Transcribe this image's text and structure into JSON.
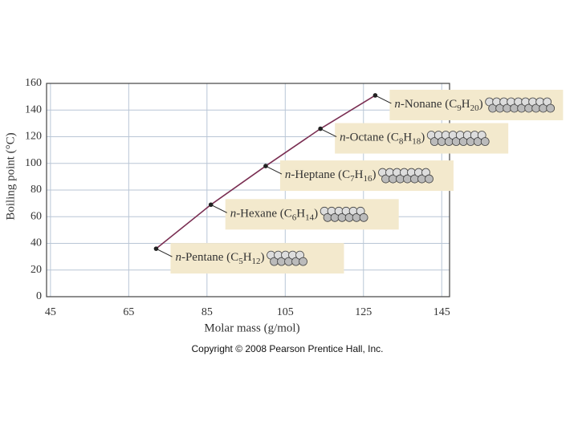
{
  "chart_data": {
    "type": "line",
    "x_label": "Molar mass (g/mol)",
    "y_label": "Boiling point (°C)",
    "x": [
      72,
      86,
      100,
      114,
      128
    ],
    "series": [
      {
        "color": "#7a2e52",
        "values": [
          36,
          69,
          98,
          126,
          151
        ]
      }
    ],
    "annotations": [
      "n-Pentane (C5H12)",
      "n-Hexane (C6H14)",
      "n-Heptane (C7H16)",
      "n-Octane (C8H18)",
      "n-Nonane (C9H20)"
    ],
    "xlim": [
      44,
      147
    ],
    "ylim": [
      0,
      160
    ],
    "xticks": [
      45,
      65,
      85,
      105,
      125,
      145
    ],
    "yticks": [
      0,
      20,
      40,
      60,
      80,
      100,
      120,
      140,
      160
    ],
    "grid": true,
    "source": "Copyright © 2008 Pearson Prentice Hall, Inc."
  }
}
